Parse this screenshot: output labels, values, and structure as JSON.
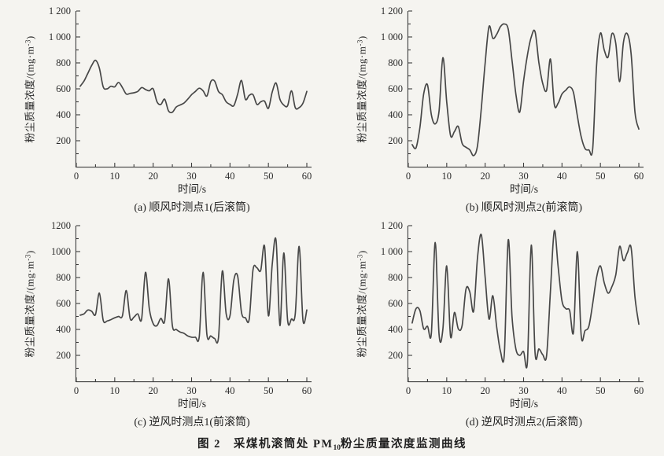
{
  "figure": {
    "caption": {
      "label": "图 2",
      "title_pre": "采煤机滚筒处 PM",
      "title_sub": "10",
      "title_post": "粉尘质量浓度监测曲线"
    }
  },
  "chart_data": [
    {
      "panel": "a",
      "type": "line",
      "title": "(a) 顺风时测点1(后滚筒)",
      "xlabel": "时间/s",
      "ylabel_main": "粉尘质量浓度/(mg·m",
      "ylabel_sup": "-3",
      "ylabel_end": ")",
      "xlim": [
        0,
        60
      ],
      "ylim": [
        0,
        1200
      ],
      "xticks": [
        0,
        10,
        20,
        30,
        40,
        50,
        60
      ],
      "yticks": [
        200,
        400,
        600,
        800,
        1000,
        1200
      ],
      "ytick_labels": [
        "200",
        "400",
        "600",
        "800",
        "1 000",
        "1 200"
      ],
      "grid": false,
      "legend": null,
      "line_color": "#474747",
      "x_start": 1,
      "x_step": 1,
      "values": [
        620,
        660,
        720,
        780,
        820,
        760,
        615,
        600,
        620,
        615,
        650,
        610,
        560,
        565,
        570,
        580,
        610,
        595,
        585,
        600,
        500,
        480,
        520,
        430,
        420,
        460,
        475,
        490,
        520,
        555,
        580,
        605,
        585,
        545,
        655,
        660,
        580,
        555,
        500,
        480,
        470,
        560,
        665,
        520,
        550,
        555,
        480,
        500,
        505,
        450,
        575,
        645,
        520,
        475,
        470,
        585,
        455,
        455,
        490,
        580
      ]
    },
    {
      "panel": "b",
      "type": "line",
      "title": "(b) 顺风时测点2(前滚筒)",
      "xlabel": "时间/s",
      "ylabel_main": "粉尘质量浓度/(mg·m",
      "ylabel_sup": "-3",
      "ylabel_end": ")",
      "xlim": [
        0,
        60
      ],
      "ylim": [
        0,
        1200
      ],
      "xticks": [
        0,
        10,
        20,
        30,
        40,
        50,
        60
      ],
      "yticks": [
        200,
        400,
        600,
        800,
        1000,
        1200
      ],
      "ytick_labels": [
        "200",
        "400",
        "600",
        "800",
        "1 000",
        "1 200"
      ],
      "grid": false,
      "legend": null,
      "line_color": "#474747",
      "x_start": 1,
      "x_step": 1,
      "values": [
        170,
        145,
        300,
        560,
        630,
        400,
        330,
        430,
        840,
        500,
        240,
        270,
        310,
        180,
        150,
        130,
        85,
        160,
        450,
        800,
        1080,
        990,
        1020,
        1080,
        1100,
        1060,
        820,
        560,
        420,
        660,
        860,
        1000,
        1040,
        800,
        640,
        590,
        830,
        480,
        490,
        560,
        590,
        615,
        570,
        390,
        230,
        140,
        130,
        140,
        780,
        1030,
        900,
        845,
        1025,
        950,
        655,
        960,
        1025,
        870,
        420,
        290
      ]
    },
    {
      "panel": "c",
      "type": "line",
      "title": "(c) 逆风时测点1(前滚筒)",
      "xlabel": "时间/s",
      "ylabel_main": "粉尘质量浓度/(mg·m",
      "ylabel_sup": "-3",
      "ylabel_end": ")",
      "xlim": [
        0,
        60
      ],
      "ylim": [
        0,
        1200
      ],
      "xticks": [
        0,
        10,
        20,
        30,
        40,
        50,
        60
      ],
      "yticks": [
        200,
        400,
        600,
        800,
        1000,
        1200
      ],
      "ytick_labels": [
        "200",
        "400",
        "600",
        "800",
        "1000",
        "1200"
      ],
      "grid": false,
      "legend": null,
      "line_color": "#474747",
      "x_start": 1,
      "x_step": 1,
      "values": [
        510,
        520,
        550,
        540,
        515,
        680,
        470,
        465,
        475,
        490,
        500,
        505,
        700,
        485,
        495,
        520,
        480,
        840,
        560,
        445,
        430,
        485,
        465,
        790,
        430,
        400,
        380,
        370,
        350,
        340,
        340,
        345,
        840,
        360,
        350,
        330,
        335,
        850,
        520,
        505,
        780,
        810,
        530,
        490,
        480,
        860,
        875,
        855,
        1040,
        505,
        900,
        1085,
        430,
        990,
        470,
        480,
        520,
        1040,
        470,
        550
      ]
    },
    {
      "panel": "d",
      "type": "line",
      "title": "(d) 逆风时测点2(后滚筒)",
      "xlabel": "时间/s",
      "ylabel_main": "粉尘质量浓度/(mg·m",
      "ylabel_sup": "-3",
      "ylabel_end": ")",
      "xlim": [
        0,
        60
      ],
      "ylim": [
        0,
        1200
      ],
      "xticks": [
        0,
        10,
        20,
        30,
        40,
        50,
        60
      ],
      "yticks": [
        200,
        400,
        600,
        800,
        1000,
        1200
      ],
      "ytick_labels": [
        "200",
        "400",
        "600",
        "800",
        "1 000",
        "1 200"
      ],
      "grid": false,
      "legend": null,
      "line_color": "#474747",
      "x_start": 1,
      "x_step": 1,
      "values": [
        450,
        560,
        545,
        405,
        425,
        370,
        1070,
        360,
        400,
        890,
        345,
        530,
        405,
        430,
        710,
        690,
        540,
        950,
        1130,
        800,
        480,
        660,
        420,
        230,
        215,
        1090,
        500,
        250,
        200,
        230,
        150,
        1050,
        220,
        250,
        205,
        200,
        700,
        1160,
        880,
        620,
        560,
        545,
        380,
        1000,
        350,
        390,
        425,
        600,
        800,
        890,
        760,
        680,
        730,
        820,
        1040,
        930,
        990,
        1030,
        650,
        440
      ]
    }
  ]
}
